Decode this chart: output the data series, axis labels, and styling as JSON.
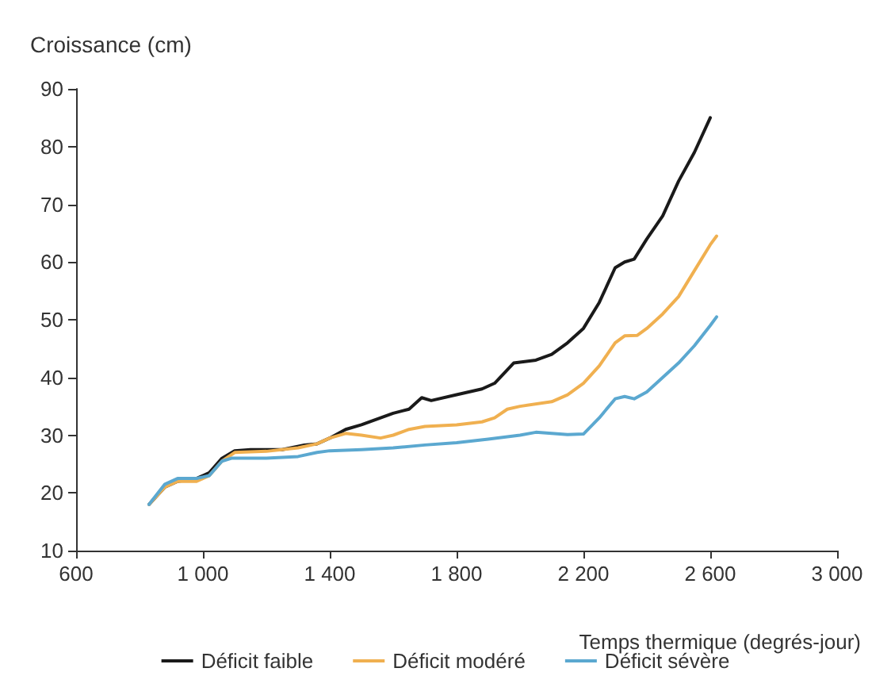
{
  "chart_data": {
    "type": "line",
    "xlabel": "Temps thermique (degrés-jour)",
    "ylabel": "Croissance (cm)",
    "xlim": [
      600,
      3000
    ],
    "xticks": [
      600,
      {
        "value": 1000,
        "label": "1 000"
      },
      {
        "value": 1400,
        "label": "1 400"
      },
      {
        "value": 1800,
        "label": "1 800"
      },
      {
        "value": 2200,
        "label": "2 200"
      },
      {
        "value": 2600,
        "label": "2 600"
      },
      {
        "value": 3000,
        "label": "3 000"
      }
    ],
    "ylim": [
      10,
      90
    ],
    "yticks": [
      10,
      20,
      30,
      40,
      50,
      60,
      70,
      80,
      90
    ],
    "grid": false,
    "legend": "bottom",
    "marker": "none",
    "line_style": "solid",
    "series": [
      {
        "name": "Déficit faible",
        "color": "#1a1a1a",
        "x": [
          830,
          880,
          920,
          980,
          1020,
          1060,
          1100,
          1150,
          1250,
          1320,
          1360,
          1400,
          1450,
          1500,
          1550,
          1600,
          1650,
          1690,
          1720,
          1800,
          1880,
          1920,
          1980,
          2050,
          2100,
          2150,
          2200,
          2250,
          2300,
          2330,
          2360,
          2400,
          2450,
          2500,
          2550,
          2600
        ],
        "values": [
          18,
          21,
          22,
          22.5,
          23.5,
          26,
          27.3,
          27.5,
          27.5,
          28.3,
          28.5,
          29.5,
          31,
          31.8,
          32.8,
          33.8,
          34.5,
          36.5,
          36,
          37,
          38,
          39,
          42.5,
          43,
          44,
          46,
          48.5,
          53,
          59,
          60,
          60.5,
          64,
          68,
          74,
          79,
          85
        ]
      },
      {
        "name": "Déficit modéré",
        "color": "#f0b050",
        "x": [
          830,
          880,
          920,
          980,
          1020,
          1060,
          1100,
          1200,
          1300,
          1360,
          1400,
          1450,
          1500,
          1560,
          1600,
          1650,
          1700,
          1800,
          1880,
          1920,
          1960,
          2000,
          2100,
          2150,
          2200,
          2250,
          2300,
          2330,
          2370,
          2400,
          2450,
          2500,
          2550,
          2600,
          2620
        ],
        "values": [
          18,
          21,
          22,
          22,
          23,
          25.5,
          27,
          27.2,
          27.8,
          28.5,
          29.5,
          30.3,
          30,
          29.5,
          30,
          31,
          31.5,
          31.8,
          32.3,
          33,
          34.5,
          35,
          35.8,
          37,
          39,
          42,
          46,
          47.2,
          47.3,
          48.5,
          51,
          54,
          58.5,
          63,
          64.5
        ]
      },
      {
        "name": "Déficit sévère",
        "color": "#5ba8d0",
        "x": [
          830,
          880,
          920,
          980,
          1020,
          1060,
          1090,
          1200,
          1300,
          1360,
          1400,
          1500,
          1600,
          1700,
          1800,
          1900,
          2000,
          2050,
          2100,
          2150,
          2200,
          2250,
          2300,
          2330,
          2360,
          2400,
          2450,
          2500,
          2550,
          2600,
          2620
        ],
        "values": [
          18,
          21.5,
          22.5,
          22.5,
          23,
          25.5,
          26,
          26,
          26.3,
          27,
          27.3,
          27.5,
          27.8,
          28.3,
          28.7,
          29.3,
          30,
          30.5,
          30.3,
          30.1,
          30.2,
          33,
          36.3,
          36.7,
          36.3,
          37.5,
          40,
          42.5,
          45.5,
          49,
          50.5
        ]
      }
    ]
  }
}
